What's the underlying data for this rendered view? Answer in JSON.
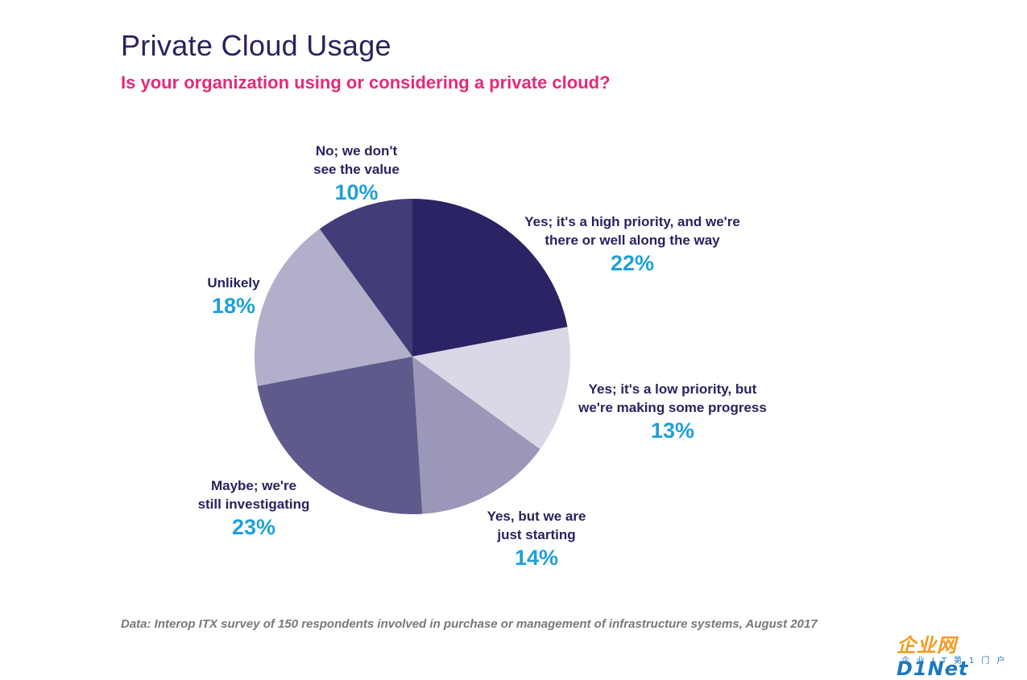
{
  "header": {
    "title": "Private Cloud Usage",
    "subtitle": "Is your organization using or considering a private cloud?"
  },
  "chart_data": {
    "type": "pie",
    "title": "Private Cloud Usage",
    "subtitle": "Is your organization using or considering a private cloud?",
    "slices": [
      {
        "label": "Yes; it's a high priority, and we're there or well along the way",
        "value": 22,
        "display": "22%",
        "color": "#2a2464"
      },
      {
        "label": "Yes; it's a low priority, but we're making some progress",
        "value": 13,
        "display": "13%",
        "color": "#dad8e6"
      },
      {
        "label": "Yes, but we are just starting",
        "value": 14,
        "display": "14%",
        "color": "#9a97b8"
      },
      {
        "label": "Maybe; we're still investigating",
        "value": 23,
        "display": "23%",
        "color": "#5e5a8c"
      },
      {
        "label": "Unlikely",
        "value": 18,
        "display": "18%",
        "color": "#b1afc9"
      },
      {
        "label": "No; we don't see the value",
        "value": 10,
        "display": "10%",
        "color": "#423d78"
      }
    ],
    "label_color": "#27235e",
    "percent_color": "#1fa0d9"
  },
  "labels": [
    {
      "line1": "Yes; it's a high priority, and we're",
      "line2": "there or well along the way",
      "pct": "22%"
    },
    {
      "line1": "Yes; it's a low priority, but",
      "line2": "we're making some progress",
      "pct": "13%"
    },
    {
      "line1": "Yes, but we are",
      "line2": "just starting",
      "pct": "14%"
    },
    {
      "line1": "Maybe; we're",
      "line2": "still investigating",
      "pct": "23%"
    },
    {
      "line1": "Unlikely",
      "line2": "",
      "pct": "18%"
    },
    {
      "line1": "No; we don't",
      "line2": "see the value",
      "pct": "10%"
    }
  ],
  "footnote": "Data: Interop ITX survey of 150 respondents involved in purchase or management of infrastructure systems, August 2017",
  "logo": {
    "main": "企业网",
    "brand": "D1Net",
    "tagline": "企业IT第1门户"
  }
}
